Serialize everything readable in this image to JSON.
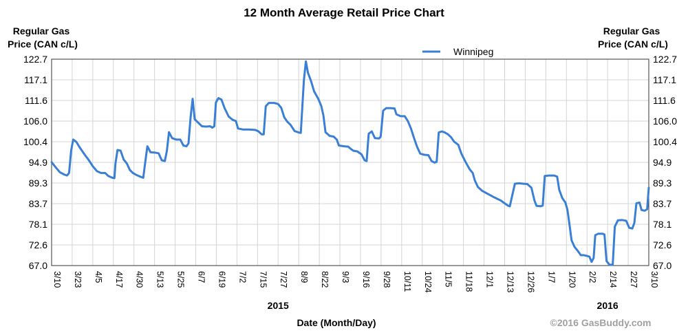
{
  "chart_data": {
    "type": "line",
    "title": "12 Month Average Retail Price Chart",
    "ylabel_left": [
      "Regular Gas",
      "Price (CAN c/L)"
    ],
    "ylabel_right": [
      "Regular Gas",
      "Price (CAN c/L)"
    ],
    "xlabel": "Date (Month/Day)",
    "year_labels": [
      {
        "text": "2015",
        "at_tick": 11
      },
      {
        "text": "2016",
        "at_tick": 27
      }
    ],
    "credit": "©2016 GasBuddy.com",
    "legend_position": "top-center",
    "grid": true,
    "ylim": [
      67.0,
      122.7
    ],
    "yticks": [
      "67.0",
      "72.6",
      "78.1",
      "83.7",
      "89.3",
      "94.9",
      "100.4",
      "106.0",
      "111.6",
      "117.1",
      "122.7"
    ],
    "xticks": [
      "3/10",
      "3/23",
      "4/5",
      "4/17",
      "4/30",
      "5/13",
      "5/25",
      "6/7",
      "6/19",
      "7/2",
      "7/15",
      "7/27",
      "8/9",
      "8/22",
      "9/3",
      "9/16",
      "9/28",
      "10/11",
      "10/24",
      "11/5",
      "11/18",
      "12/1",
      "12/13",
      "12/26",
      "1/7",
      "1/20",
      "2/2",
      "2/14",
      "2/27",
      "3/10"
    ],
    "series": [
      {
        "name": "Winnipeg",
        "color": "#3a7fd6",
        "points": [
          [
            0.0,
            94.9
          ],
          [
            0.2,
            93.5
          ],
          [
            0.4,
            92.2
          ],
          [
            0.6,
            91.6
          ],
          [
            0.75,
            91.3
          ],
          [
            0.85,
            92.0
          ],
          [
            0.95,
            98.0
          ],
          [
            1.05,
            101.0
          ],
          [
            1.2,
            100.4
          ],
          [
            1.35,
            99.0
          ],
          [
            1.5,
            97.8
          ],
          [
            1.65,
            96.6
          ],
          [
            1.8,
            95.5
          ],
          [
            2.0,
            93.8
          ],
          [
            2.2,
            92.5
          ],
          [
            2.4,
            92.0
          ],
          [
            2.6,
            92.0
          ],
          [
            2.75,
            91.2
          ],
          [
            2.95,
            90.7
          ],
          [
            3.05,
            90.6
          ],
          [
            3.1,
            94.5
          ],
          [
            3.2,
            98.2
          ],
          [
            3.35,
            98.0
          ],
          [
            3.5,
            95.6
          ],
          [
            3.65,
            94.6
          ],
          [
            3.8,
            92.8
          ],
          [
            3.95,
            92.0
          ],
          [
            4.1,
            91.5
          ],
          [
            4.3,
            91.0
          ],
          [
            4.45,
            90.7
          ],
          [
            4.55,
            95.0
          ],
          [
            4.65,
            99.2
          ],
          [
            4.8,
            97.6
          ],
          [
            5.0,
            97.5
          ],
          [
            5.2,
            97.3
          ],
          [
            5.35,
            95.4
          ],
          [
            5.5,
            95.2
          ],
          [
            5.6,
            98.0
          ],
          [
            5.7,
            103.0
          ],
          [
            5.85,
            101.4
          ],
          [
            6.05,
            101.0
          ],
          [
            6.25,
            101.0
          ],
          [
            6.4,
            99.4
          ],
          [
            6.55,
            99.2
          ],
          [
            6.65,
            100.0
          ],
          [
            6.75,
            107.0
          ],
          [
            6.85,
            112.0
          ],
          [
            6.95,
            106.5
          ],
          [
            7.15,
            105.4
          ],
          [
            7.3,
            104.6
          ],
          [
            7.5,
            104.5
          ],
          [
            7.7,
            104.6
          ],
          [
            7.8,
            104.2
          ],
          [
            7.9,
            104.6
          ],
          [
            7.98,
            111.0
          ],
          [
            8.1,
            112.2
          ],
          [
            8.25,
            111.8
          ],
          [
            8.4,
            109.5
          ],
          [
            8.6,
            107.2
          ],
          [
            8.8,
            106.3
          ],
          [
            8.95,
            106.0
          ],
          [
            9.05,
            104.0
          ],
          [
            9.3,
            103.7
          ],
          [
            9.6,
            103.7
          ],
          [
            9.9,
            103.6
          ],
          [
            10.05,
            103.2
          ],
          [
            10.2,
            102.4
          ],
          [
            10.3,
            102.4
          ],
          [
            10.4,
            110.0
          ],
          [
            10.55,
            110.9
          ],
          [
            10.8,
            110.9
          ],
          [
            11.0,
            110.6
          ],
          [
            11.15,
            109.6
          ],
          [
            11.3,
            107.0
          ],
          [
            11.45,
            105.8
          ],
          [
            11.6,
            105.0
          ],
          [
            11.8,
            103.3
          ],
          [
            12.0,
            102.9
          ],
          [
            12.1,
            102.8
          ],
          [
            12.25,
            117.0
          ],
          [
            12.35,
            122.1
          ],
          [
            12.45,
            119.0
          ],
          [
            12.6,
            116.8
          ],
          [
            12.75,
            114.0
          ],
          [
            12.95,
            112.0
          ],
          [
            13.1,
            110.0
          ],
          [
            13.2,
            107.5
          ],
          [
            13.3,
            103.0
          ],
          [
            13.5,
            102.0
          ],
          [
            13.7,
            101.8
          ],
          [
            13.85,
            101.0
          ],
          [
            13.95,
            99.4
          ],
          [
            14.2,
            99.2
          ],
          [
            14.4,
            99.1
          ],
          [
            14.55,
            98.4
          ],
          [
            14.65,
            98.0
          ],
          [
            14.85,
            97.8
          ],
          [
            15.05,
            97.0
          ],
          [
            15.2,
            95.4
          ],
          [
            15.3,
            95.2
          ],
          [
            15.4,
            102.6
          ],
          [
            15.55,
            103.2
          ],
          [
            15.7,
            101.4
          ],
          [
            15.9,
            101.3
          ],
          [
            15.98,
            101.8
          ],
          [
            16.1,
            108.8
          ],
          [
            16.25,
            109.5
          ],
          [
            16.45,
            109.5
          ],
          [
            16.65,
            109.4
          ],
          [
            16.75,
            107.8
          ],
          [
            16.95,
            107.3
          ],
          [
            17.15,
            107.3
          ],
          [
            17.3,
            106.0
          ],
          [
            17.45,
            104.0
          ],
          [
            17.6,
            101.4
          ],
          [
            17.75,
            99.0
          ],
          [
            17.9,
            97.2
          ],
          [
            18.1,
            96.9
          ],
          [
            18.3,
            96.8
          ],
          [
            18.45,
            95.2
          ],
          [
            18.6,
            94.8
          ],
          [
            18.7,
            95.0
          ],
          [
            18.8,
            102.9
          ],
          [
            18.95,
            103.2
          ],
          [
            19.1,
            102.9
          ],
          [
            19.25,
            102.4
          ],
          [
            19.4,
            101.6
          ],
          [
            19.55,
            100.4
          ],
          [
            19.75,
            99.6
          ],
          [
            19.9,
            97.2
          ],
          [
            20.1,
            95.0
          ],
          [
            20.3,
            93.0
          ],
          [
            20.45,
            92.0
          ],
          [
            20.55,
            90.0
          ],
          [
            20.7,
            88.2
          ],
          [
            20.9,
            87.2
          ],
          [
            21.1,
            86.6
          ],
          [
            21.3,
            86.0
          ],
          [
            21.5,
            85.4
          ],
          [
            21.65,
            85.0
          ],
          [
            21.8,
            84.6
          ],
          [
            22.0,
            83.8
          ],
          [
            22.15,
            83.2
          ],
          [
            22.25,
            83.0
          ],
          [
            22.35,
            85.5
          ],
          [
            22.5,
            89.1
          ],
          [
            22.7,
            89.2
          ],
          [
            22.9,
            89.1
          ],
          [
            23.1,
            89.0
          ],
          [
            23.3,
            88.0
          ],
          [
            23.45,
            84.5
          ],
          [
            23.55,
            83.1
          ],
          [
            23.75,
            83.0
          ],
          [
            23.85,
            83.2
          ],
          [
            23.95,
            91.2
          ],
          [
            24.15,
            91.3
          ],
          [
            24.4,
            91.3
          ],
          [
            24.55,
            91.0
          ],
          [
            24.65,
            87.5
          ],
          [
            24.8,
            85.2
          ],
          [
            24.95,
            84.0
          ],
          [
            25.05,
            82.0
          ],
          [
            25.15,
            78.0
          ],
          [
            25.25,
            73.8
          ],
          [
            25.4,
            72.0
          ],
          [
            25.55,
            71.0
          ],
          [
            25.7,
            69.8
          ],
          [
            25.85,
            69.8
          ],
          [
            26.0,
            69.6
          ],
          [
            26.12,
            69.4
          ],
          [
            26.22,
            68.0
          ],
          [
            26.32,
            69.0
          ],
          [
            26.4,
            75.2
          ],
          [
            26.55,
            75.6
          ],
          [
            26.75,
            75.6
          ],
          [
            26.85,
            75.4
          ],
          [
            26.95,
            68.2
          ],
          [
            27.1,
            67.2
          ],
          [
            27.25,
            67.2
          ],
          [
            27.35,
            77.5
          ],
          [
            27.5,
            79.2
          ],
          [
            27.7,
            79.3
          ],
          [
            27.9,
            79.1
          ],
          [
            28.05,
            77.2
          ],
          [
            28.2,
            77.0
          ],
          [
            28.3,
            78.5
          ],
          [
            28.4,
            83.8
          ],
          [
            28.55,
            84.0
          ],
          [
            28.65,
            82.0
          ],
          [
            28.8,
            81.8
          ],
          [
            28.92,
            82.2
          ],
          [
            29.0,
            88.0
          ]
        ]
      }
    ]
  }
}
